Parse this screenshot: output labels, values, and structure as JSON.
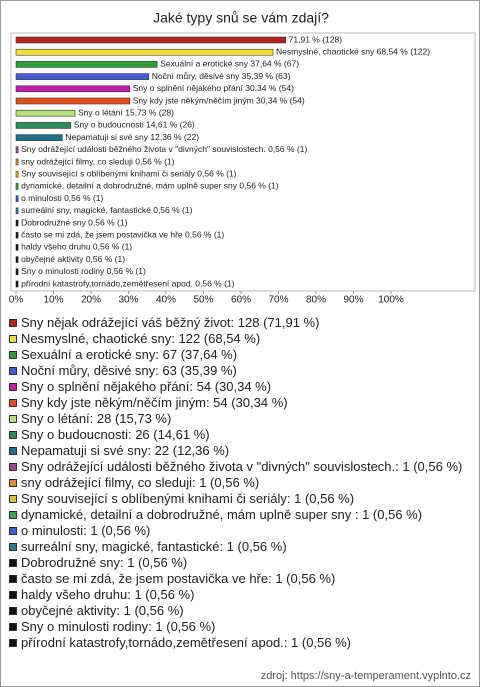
{
  "chart_data": {
    "type": "bar",
    "orientation": "horizontal",
    "title": "Jaké typy snů se vám zdají?",
    "values": [
      71.91,
      68.54,
      37.64,
      35.39,
      30.34,
      30.34,
      15.73,
      14.61,
      12.36,
      0.56,
      0.56,
      0.56,
      0.56,
      0.56,
      0.56,
      0.56,
      0.56,
      0.56,
      0.56,
      0.56,
      0.56
    ],
    "value_labels": [
      "71,91 % (128)",
      "Nesmyslné, chaotické sny 68,54 % (122)",
      "Sexuální a erotické sny 37,64 % (67)",
      "Noční můry, děsivé sny 35,39 % (63)",
      "Sny o splnění nějakého přání 30,34 % (54)",
      "Sny kdy jste někým/něčím jiným 30,34 % (54)",
      "Sny o létání 15,73 % (28)",
      "Sny o budoucnosti 14,61 % (26)",
      "Nepamatuji si své sny 12,36 % (22)",
      "Sny odrážející události běžného života v \"divných\" souvislostech. 0,56 % (1)",
      "sny odrážející filmy, co sleduji 0,56 % (1)",
      "Sny související s oblíbenými knihami či seriály 0,56 % (1)",
      "dynamické, detailní a dobrodružné, mám uplně super sny  0,56 % (1)",
      "o minulosti 0,56 % (1)",
      "surreální sny, magické, fantastické 0,56 % (1)",
      "Dobrodružné sny 0,56 % (1)",
      "často se mi zdá, že jsem postavička ve hře 0,56 % (1)",
      "haldy všeho druhu 0,56 % (1)",
      "obyčejné aktivity 0,56 % (1)",
      "Sny o minulosti rodiny 0,56 % (1)",
      "přírodní katastrofy,tornádo,zemětřesení apod. 0,56 % (1)"
    ],
    "legend": [
      "Sny nějak odrážející váš běžný život: 128 (71,91 %)",
      "Nesmyslné, chaotické sny: 122 (68,54 %)",
      "Sexuální a erotické sny: 67 (37,64 %)",
      "Noční můry, děsivé sny: 63 (35,39 %)",
      "Sny o splnění nějakého přání: 54 (30,34 %)",
      "Sny kdy jste někým/něčím jiným: 54 (30,34 %)",
      "Sny o létání: 28 (15,73 %)",
      "Sny o budoucnosti: 26 (14,61 %)",
      "Nepamatuji si své sny: 22 (12,36 %)",
      "Sny odrážející události běžného života v \"divných\" souvislostech.: 1 (0,56 %)",
      "sny odrážející filmy, co sleduji: 1 (0,56 %)",
      "Sny související s oblíbenými knihami či seriály: 1 (0,56 %)",
      "dynamické, detailní a dobrodružné, mám uplně super sny : 1 (0,56 %)",
      "o minulosti: 1 (0,56 %)",
      "surreální sny, magické, fantastické: 1 (0,56 %)",
      "Dobrodružné sny: 1 (0,56 %)",
      "často se mi zdá, že jsem postavička ve hře: 1 (0,56 %)",
      "haldy všeho druhu: 1 (0,56 %)",
      "obyčejné aktivity: 1 (0,56 %)",
      "Sny o minulosti rodiny: 1 (0,56 %)",
      "přírodní katastrofy,tornádo,zemětřesení apod.: 1 (0,56 %)"
    ],
    "colors": [
      "#b5241c",
      "#f2de3a",
      "#2e9e3a",
      "#4659d6",
      "#c41fa8",
      "#e2501e",
      "#b5e07a",
      "#2e8b57",
      "#1f6f8b",
      "#a0468c",
      "#e8892c",
      "#d8c23a",
      "#3aa655",
      "#3a5ccc",
      "#2a7f8a",
      "#111111",
      "#111111",
      "#111111",
      "#111111",
      "#111111",
      "#111111"
    ],
    "xlim": [
      0,
      100
    ],
    "xticks": [
      {
        "value": 0,
        "label": "0%"
      },
      {
        "value": 10,
        "label": "10%"
      },
      {
        "value": 20,
        "label": "20%"
      },
      {
        "value": 30,
        "label": "30%"
      },
      {
        "value": 40,
        "label": "40%"
      },
      {
        "value": 50,
        "label": "50%"
      },
      {
        "value": 60,
        "label": "60%"
      },
      {
        "value": 70,
        "label": "70%"
      },
      {
        "value": 80,
        "label": "80%"
      },
      {
        "value": 90,
        "label": "90%"
      },
      {
        "value": 100,
        "label": "100%"
      }
    ],
    "source": "zdroj: https://sny-a-temperament.vyplnto.cz"
  }
}
